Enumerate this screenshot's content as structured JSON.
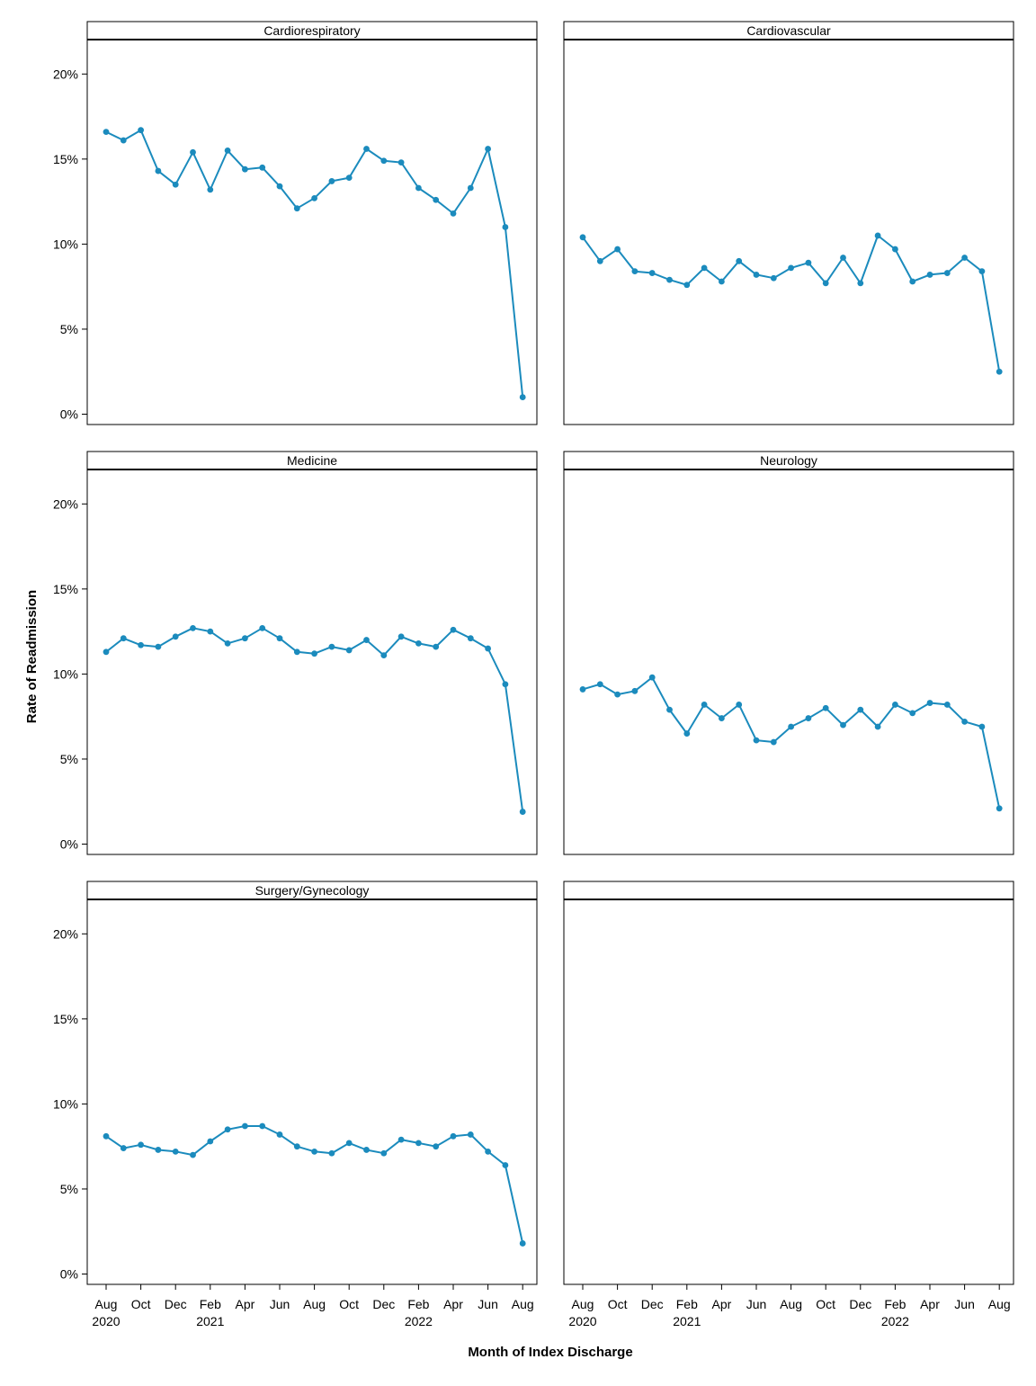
{
  "chart_data": {
    "type": "line",
    "xlabel": "Month of Index Discharge",
    "ylabel": "Rate of Readmission",
    "ylim": [
      0,
      21
    ],
    "y_ticks": [
      0,
      5,
      10,
      15,
      20
    ],
    "y_tick_labels": [
      "0%",
      "5%",
      "10%",
      "15%",
      "20%"
    ],
    "x": [
      "2020-08",
      "2020-09",
      "2020-10",
      "2020-11",
      "2020-12",
      "2021-01",
      "2021-02",
      "2021-03",
      "2021-04",
      "2021-05",
      "2021-06",
      "2021-07",
      "2021-08",
      "2021-09",
      "2021-10",
      "2021-11",
      "2021-12",
      "2022-01",
      "2022-02",
      "2022-03",
      "2022-04",
      "2022-05",
      "2022-06",
      "2022-07",
      "2022-08"
    ],
    "x_ticks": [
      {
        "month": "2020-08",
        "label": "Aug",
        "year": "2020"
      },
      {
        "month": "2020-10",
        "label": "Oct",
        "year": ""
      },
      {
        "month": "2020-12",
        "label": "Dec",
        "year": ""
      },
      {
        "month": "2021-02",
        "label": "Feb",
        "year": "2021"
      },
      {
        "month": "2021-04",
        "label": "Apr",
        "year": ""
      },
      {
        "month": "2021-06",
        "label": "Jun",
        "year": ""
      },
      {
        "month": "2021-08",
        "label": "Aug",
        "year": ""
      },
      {
        "month": "2021-10",
        "label": "Oct",
        "year": ""
      },
      {
        "month": "2021-12",
        "label": "Dec",
        "year": ""
      },
      {
        "month": "2022-02",
        "label": "Feb",
        "year": "2022"
      },
      {
        "month": "2022-04",
        "label": "Apr",
        "year": ""
      },
      {
        "month": "2022-06",
        "label": "Jun",
        "year": ""
      },
      {
        "month": "2022-08",
        "label": "Aug",
        "year": ""
      }
    ],
    "grid": false,
    "line_color": "#1b8bbd",
    "panels": [
      {
        "strip": "Cardiorespiratory",
        "values": [
          16.6,
          16.1,
          16.7,
          14.3,
          13.5,
          15.4,
          13.2,
          15.5,
          14.4,
          14.5,
          13.4,
          12.1,
          12.7,
          13.7,
          13.9,
          15.6,
          14.9,
          14.8,
          13.3,
          12.6,
          11.8,
          13.3,
          15.6,
          11.0,
          1.0
        ]
      },
      {
        "strip": "Cardiovascular",
        "values": [
          10.4,
          9.0,
          9.7,
          8.4,
          8.3,
          7.9,
          7.6,
          8.6,
          7.8,
          9.0,
          8.2,
          8.0,
          8.6,
          8.9,
          7.7,
          9.2,
          7.7,
          10.5,
          9.7,
          7.8,
          8.2,
          8.3,
          9.2,
          8.4,
          2.5
        ]
      },
      {
        "strip": "Medicine",
        "values": [
          11.3,
          12.1,
          11.7,
          11.6,
          12.2,
          12.7,
          12.5,
          11.8,
          12.1,
          12.7,
          12.1,
          11.3,
          11.2,
          11.6,
          11.4,
          12.0,
          11.1,
          12.2,
          11.8,
          11.6,
          12.6,
          12.1,
          11.5,
          9.4,
          1.9
        ]
      },
      {
        "strip": "Neurology",
        "values": [
          9.1,
          9.4,
          8.8,
          9.0,
          9.8,
          7.9,
          6.5,
          8.2,
          7.4,
          8.2,
          6.1,
          6.0,
          6.9,
          7.4,
          8.0,
          7.0,
          7.9,
          6.9,
          8.2,
          7.7,
          8.3,
          8.2,
          7.2,
          6.9,
          2.1
        ]
      },
      {
        "strip": "Surgery/Gynecology",
        "values": [
          8.1,
          7.4,
          7.6,
          7.3,
          7.2,
          7.0,
          7.8,
          8.5,
          8.7,
          8.7,
          8.2,
          7.5,
          7.2,
          7.1,
          7.7,
          7.3,
          7.1,
          7.9,
          7.7,
          7.5,
          8.1,
          8.2,
          7.2,
          6.4,
          1.8
        ]
      },
      {
        "strip": "",
        "values": []
      }
    ]
  }
}
